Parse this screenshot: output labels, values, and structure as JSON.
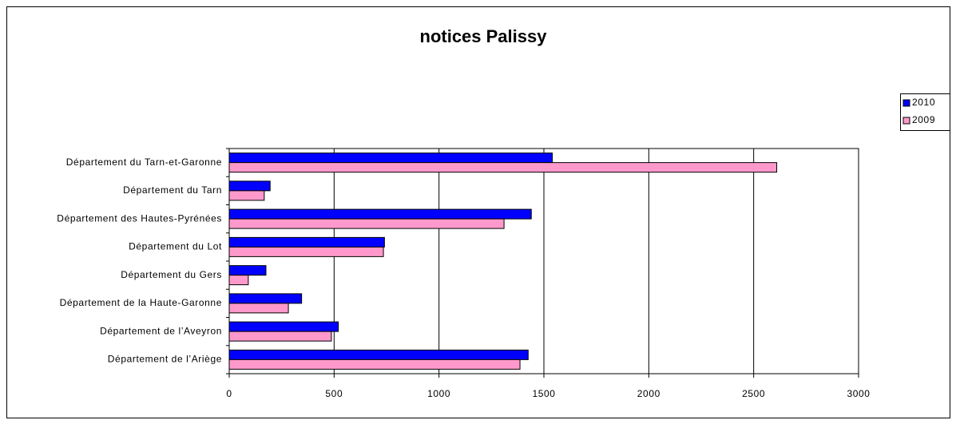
{
  "chart_data": {
    "type": "hbar",
    "title": "notices Palissy",
    "categories": [
      "Département du Tarn-et-Garonne",
      "Département du Tarn",
      "Département des Hautes-Pyrénées",
      "Département du Lot",
      "Département du Gers",
      "Département de la Haute-Garonne",
      "Département de l’Aveyron",
      "Département de l’Ariège"
    ],
    "series": [
      {
        "name": "2010",
        "color": "#0000ff",
        "values": [
          1540,
          195,
          1440,
          740,
          175,
          345,
          520,
          1425
        ]
      },
      {
        "name": "2009",
        "color": "#ff99cc",
        "values": [
          2610,
          167,
          1310,
          735,
          91,
          282,
          487,
          1386
        ]
      }
    ],
    "xlim": [
      0,
      3000
    ],
    "xticks": [
      0,
      500,
      1000,
      1500,
      2000,
      2500,
      3000
    ],
    "grid": true,
    "legend": "right"
  }
}
